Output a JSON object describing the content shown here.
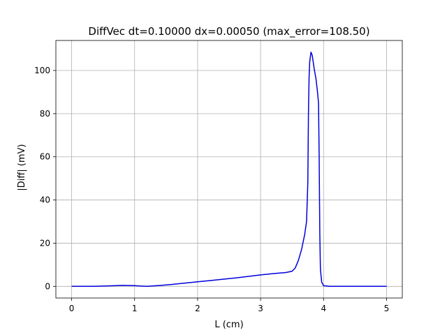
{
  "chart_data": {
    "type": "line",
    "title": "DiffVec dt=0.10000 dx=0.00050 (max_error=108.50)",
    "xlabel": "L (cm)",
    "ylabel": "|Diff| (mV)",
    "xlim": [
      -0.25,
      5.25
    ],
    "ylim": [
      -5.4,
      113.9
    ],
    "xticks": [
      0,
      1,
      2,
      3,
      4,
      5
    ],
    "yticks": [
      0,
      20,
      40,
      60,
      80,
      100
    ],
    "xtick_labels": [
      "0",
      "1",
      "2",
      "3",
      "4",
      "5"
    ],
    "ytick_labels": [
      "0",
      "20",
      "40",
      "60",
      "80",
      "100"
    ],
    "grid": true,
    "series": [
      {
        "color": "#0000dd",
        "points": [
          [
            0,
            0
          ],
          [
            0.2,
            0
          ],
          [
            0.4,
            0.05
          ],
          [
            0.6,
            0.2
          ],
          [
            0.8,
            0.45
          ],
          [
            1.0,
            0.35
          ],
          [
            1.1,
            0.15
          ],
          [
            1.2,
            0
          ],
          [
            1.4,
            0.4
          ],
          [
            1.6,
            0.9
          ],
          [
            1.8,
            1.5
          ],
          [
            2.0,
            2.1
          ],
          [
            2.2,
            2.7
          ],
          [
            2.4,
            3.3
          ],
          [
            2.6,
            3.9
          ],
          [
            2.8,
            4.6
          ],
          [
            3.0,
            5.3
          ],
          [
            3.2,
            5.9
          ],
          [
            3.4,
            6.4
          ],
          [
            3.5,
            7.0
          ],
          [
            3.55,
            8.5
          ],
          [
            3.6,
            12
          ],
          [
            3.65,
            17
          ],
          [
            3.7,
            24
          ],
          [
            3.73,
            30
          ],
          [
            3.75,
            48
          ],
          [
            3.76,
            80
          ],
          [
            3.77,
            97
          ],
          [
            3.78,
            104
          ],
          [
            3.8,
            108.5
          ],
          [
            3.82,
            107
          ],
          [
            3.85,
            101
          ],
          [
            3.88,
            96
          ],
          [
            3.9,
            91
          ],
          [
            3.92,
            85
          ],
          [
            3.93,
            60
          ],
          [
            3.94,
            25
          ],
          [
            3.95,
            8
          ],
          [
            3.97,
            2
          ],
          [
            4.0,
            0.3
          ],
          [
            4.1,
            0
          ],
          [
            4.5,
            0
          ],
          [
            5.0,
            0
          ]
        ]
      }
    ]
  }
}
